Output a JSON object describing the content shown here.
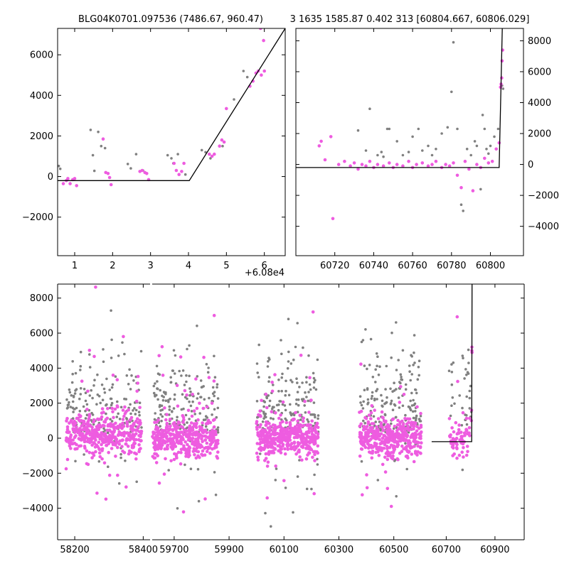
{
  "chart_data": [
    {
      "id": "zoom",
      "type": "scatter",
      "title": "BLG04K0701.097536 (7486.67, 960.47)",
      "x_offset_label": "+6.08e4",
      "xlim": [
        60800.55,
        60806.55
      ],
      "ylim": [
        -3900,
        7300
      ],
      "xticks": [
        60801,
        60802,
        60803,
        60804,
        60805,
        60806
      ],
      "xtick_labels": [
        "1",
        "2",
        "3",
        "4",
        "5",
        "6"
      ],
      "yticks": [
        -2000,
        0,
        2000,
        4000,
        6000
      ],
      "ytick_labels": [
        "−2000",
        "0",
        "2000",
        "4000",
        "6000"
      ],
      "yaxis_side": "left",
      "grid": false,
      "series": [
        {
          "color": "#808080",
          "points": [
            [
              60800.58,
              520
            ],
            [
              60800.62,
              380
            ],
            [
              60801.42,
              2300
            ],
            [
              60801.48,
              1050
            ],
            [
              60801.52,
              280
            ],
            [
              60801.62,
              2200
            ],
            [
              60801.7,
              1500
            ],
            [
              60801.8,
              1400
            ],
            [
              60802.4,
              620
            ],
            [
              60802.48,
              400
            ],
            [
              60802.62,
              1100
            ],
            [
              60802.8,
              300
            ],
            [
              60803.45,
              1050
            ],
            [
              60803.55,
              900
            ],
            [
              60803.6,
              650
            ],
            [
              60803.72,
              1100
            ],
            [
              60803.92,
              100
            ],
            [
              60804.35,
              1300
            ],
            [
              60804.45,
              1200
            ],
            [
              60804.58,
              900
            ],
            [
              60804.9,
              1500
            ],
            [
              60805.2,
              3800
            ],
            [
              60805.45,
              5200
            ],
            [
              60805.55,
              4900
            ]
          ]
        },
        {
          "color": "#ee5ce0",
          "points": [
            [
              60800.7,
              -350
            ],
            [
              60800.78,
              -200
            ],
            [
              60800.82,
              -100
            ],
            [
              60800.88,
              -350
            ],
            [
              60800.95,
              -150
            ],
            [
              60801.0,
              -100
            ],
            [
              60801.05,
              -450
            ],
            [
              60801.75,
              1850
            ],
            [
              60801.82,
              200
            ],
            [
              60801.88,
              150
            ],
            [
              60801.92,
              -50
            ],
            [
              60801.96,
              -400
            ],
            [
              60802.72,
              250
            ],
            [
              60802.78,
              300
            ],
            [
              60802.85,
              200
            ],
            [
              60802.9,
              150
            ],
            [
              60802.95,
              -150
            ],
            [
              60803.62,
              650
            ],
            [
              60803.68,
              300
            ],
            [
              60803.75,
              100
            ],
            [
              60803.82,
              250
            ],
            [
              60803.88,
              650
            ],
            [
              60804.55,
              1100
            ],
            [
              60804.62,
              1000
            ],
            [
              60804.68,
              1100
            ],
            [
              60804.82,
              1500
            ],
            [
              60804.88,
              1800
            ],
            [
              60804.94,
              1700
            ],
            [
              60805.0,
              3350
            ],
            [
              60805.62,
              4450
            ],
            [
              60805.7,
              4700
            ],
            [
              60805.78,
              5100
            ],
            [
              60805.84,
              5200
            ],
            [
              60805.92,
              5000
            ],
            [
              60805.98,
              6700
            ],
            [
              60805.9,
              7300
            ],
            [
              60806.0,
              5200
            ]
          ]
        }
      ],
      "model_line": [
        [
          60800.55,
          -200
        ],
        [
          60804.02,
          -200
        ],
        [
          60806.55,
          7300
        ]
      ]
    },
    {
      "id": "recent",
      "type": "scatter",
      "title": "3 1635 1585.87 0.402 313 [60804.667, 60806.029]",
      "xlim": [
        60700,
        60817
      ],
      "ylim": [
        -5900,
        8800
      ],
      "xticks": [
        60720,
        60740,
        60760,
        60780,
        60800
      ],
      "xtick_labels": [
        "60720",
        "60740",
        "60760",
        "60780",
        "60800"
      ],
      "yticks": [
        -4000,
        -2000,
        0,
        2000,
        4000,
        6000,
        8000
      ],
      "ytick_labels": [
        "−4000",
        "−2000",
        "0",
        "2000",
        "4000",
        "6000",
        "8000"
      ],
      "yaxis_side": "right",
      "grid": false,
      "series": [
        {
          "color": "#808080",
          "points": [
            [
              60732,
              2200
            ],
            [
              60736,
              900
            ],
            [
              60738,
              3600
            ],
            [
              60742,
              600
            ],
            [
              60744,
              800
            ],
            [
              60747,
              2300
            ],
            [
              60748,
              2300
            ],
            [
              60752,
              1500
            ],
            [
              60755,
              600
            ],
            [
              60760,
              1800
            ],
            [
              60763,
              2300
            ],
            [
              60765,
              900
            ],
            [
              60768,
              1200
            ],
            [
              60772,
              1000
            ],
            [
              60775,
              2000
            ],
            [
              60778,
              2400
            ],
            [
              60780,
              4700
            ],
            [
              60781,
              7900
            ],
            [
              60783,
              2300
            ],
            [
              60785,
              -2600
            ],
            [
              60786,
              -3000
            ],
            [
              60788,
              1000
            ],
            [
              60790,
              600
            ],
            [
              60792,
              1500
            ],
            [
              60793,
              1200
            ],
            [
              60795,
              -1600
            ],
            [
              60796,
              3200
            ],
            [
              60797,
              2300
            ],
            [
              60800,
              1200
            ],
            [
              60802,
              1800
            ],
            [
              60804,
              2300
            ],
            [
              60806,
              5100
            ],
            [
              60806.5,
              4900
            ],
            [
              60799,
              700
            ],
            [
              60798,
              1000
            ],
            [
              60770,
              600
            ],
            [
              60758,
              800
            ],
            [
              60745,
              500
            ]
          ]
        },
        {
          "color": "#ee5ce0",
          "points": [
            [
              60712,
              1200
            ],
            [
              60713,
              1500
            ],
            [
              60715,
              300
            ],
            [
              60718,
              1800
            ],
            [
              60719,
              -3500
            ],
            [
              60722,
              0
            ],
            [
              60725,
              200
            ],
            [
              60728,
              -100
            ],
            [
              60730,
              100
            ],
            [
              60732,
              -300
            ],
            [
              60734,
              0
            ],
            [
              60736,
              -100
            ],
            [
              60738,
              200
            ],
            [
              60740,
              -200
            ],
            [
              60742,
              0
            ],
            [
              60745,
              -100
            ],
            [
              60748,
              100
            ],
            [
              60750,
              -200
            ],
            [
              60752,
              0
            ],
            [
              60755,
              -100
            ],
            [
              60758,
              200
            ],
            [
              60760,
              -200
            ],
            [
              60762,
              0
            ],
            [
              60765,
              100
            ],
            [
              60768,
              -100
            ],
            [
              60770,
              0
            ],
            [
              60772,
              200
            ],
            [
              60775,
              -200
            ],
            [
              60777,
              0
            ],
            [
              60779,
              -100
            ],
            [
              60781,
              100
            ],
            [
              60783,
              -700
            ],
            [
              60785,
              -1500
            ],
            [
              60787,
              200
            ],
            [
              60789,
              -300
            ],
            [
              60791,
              -1700
            ],
            [
              60793,
              0
            ],
            [
              60795,
              -200
            ],
            [
              60797,
              400
            ],
            [
              60799,
              100
            ],
            [
              60801,
              200
            ],
            [
              60803,
              1000
            ],
            [
              60805.2,
              5000
            ],
            [
              60805.5,
              5200
            ],
            [
              60805.8,
              5600
            ],
            [
              60806,
              6700
            ],
            [
              60806.3,
              7400
            ],
            [
              60804.5,
              1400
            ]
          ]
        }
      ],
      "model_line": [
        [
          60700,
          -200
        ],
        [
          60804.5,
          -200
        ],
        [
          60806.1,
          8800
        ]
      ]
    },
    {
      "id": "full",
      "type": "scatter",
      "xlim": [
        58150,
        61020
      ],
      "ylim": [
        -5800,
        8800
      ],
      "xticks": [
        58200,
        58400,
        59700,
        59900,
        60100,
        60300,
        60500,
        60700,
        60900
      ],
      "xtick_labels": [
        "58200",
        "58400",
        "59700",
        "59900",
        "60100",
        "60300",
        "60500",
        "60700",
        "60900"
      ],
      "yticks": [
        -4000,
        -2000,
        0,
        2000,
        4000,
        6000,
        8000
      ],
      "ytick_labels": [
        "−4000",
        "−2000",
        "0",
        "2000",
        "4000",
        "6000",
        "8000"
      ],
      "yaxis_side": "left",
      "grid": false,
      "seasons": [
        [
          58175,
          58395
        ],
        [
          59620,
          59860
        ],
        [
          60000,
          60225
        ],
        [
          60375,
          60600
        ],
        [
          60710,
          60805
        ]
      ],
      "series": [
        {
          "color": "#808080",
          "points": []
        },
        {
          "color": "#ee5ce0",
          "points": []
        }
      ],
      "model_line": [
        [
          60640,
          -200
        ],
        [
          60804.5,
          -200
        ],
        [
          60806.1,
          8800
        ]
      ]
    }
  ]
}
